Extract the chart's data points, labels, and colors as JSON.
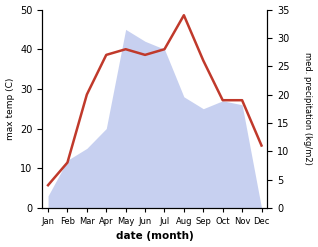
{
  "months": [
    "Jan",
    "Feb",
    "Mar",
    "Apr",
    "May",
    "Jun",
    "Jul",
    "Aug",
    "Sep",
    "Oct",
    "Nov",
    "Dec"
  ],
  "temperature": [
    3,
    12,
    15,
    20,
    45,
    42,
    40,
    28,
    25,
    27,
    26,
    0
  ],
  "precipitation": [
    4,
    8,
    20,
    27,
    28,
    27,
    28,
    34,
    26,
    19,
    19,
    11
  ],
  "temp_color_fill": "#aab8e8",
  "line_color": "#c0392b",
  "temp_ylim": [
    0,
    50
  ],
  "precip_ylim": [
    0,
    35
  ],
  "temp_yticks": [
    0,
    10,
    20,
    30,
    40,
    50
  ],
  "precip_yticks": [
    0,
    5,
    10,
    15,
    20,
    25,
    30,
    35
  ],
  "xlabel": "date (month)",
  "ylabel_left": "max temp (C)",
  "ylabel_right": "med. precipitation (kg/m2)",
  "bg_color": "#ffffff"
}
